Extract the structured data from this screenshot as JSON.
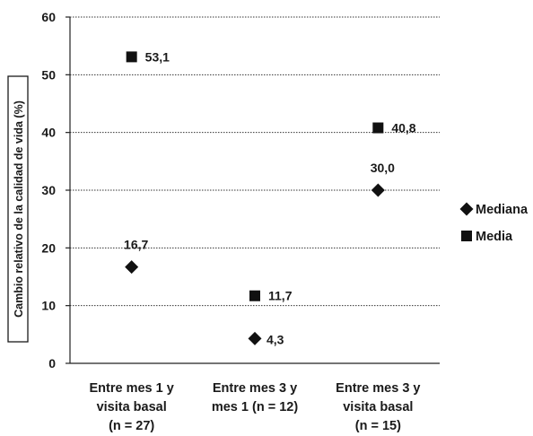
{
  "chart_data": {
    "type": "scatter",
    "title": "",
    "xlabel": "",
    "ylabel": "Cambio relativo de la calidad de vida (%)",
    "ylim": [
      0,
      60
    ],
    "yticks": [
      0,
      10,
      20,
      30,
      40,
      50,
      60
    ],
    "grid": "horizontal-dotted",
    "legend_position": "right",
    "categories": [
      [
        "Entre mes 1 y",
        "visita basal",
        "(n = 27)"
      ],
      [
        "Entre mes 3 y",
        "mes 1 (n = 12)"
      ],
      [
        "Entre mes 3 y",
        "visita basal",
        "(n = 15)"
      ]
    ],
    "series": [
      {
        "name": "Mediana",
        "marker": "diamond",
        "values": [
          16.7,
          4.3,
          30.0
        ],
        "labels": [
          "16,7",
          "4,3",
          "30,0"
        ]
      },
      {
        "name": "Media",
        "marker": "square",
        "values": [
          53.1,
          11.7,
          40.8
        ],
        "labels": [
          "53,1",
          "11,7",
          "40,8"
        ]
      }
    ],
    "marker_color": "#111111"
  }
}
